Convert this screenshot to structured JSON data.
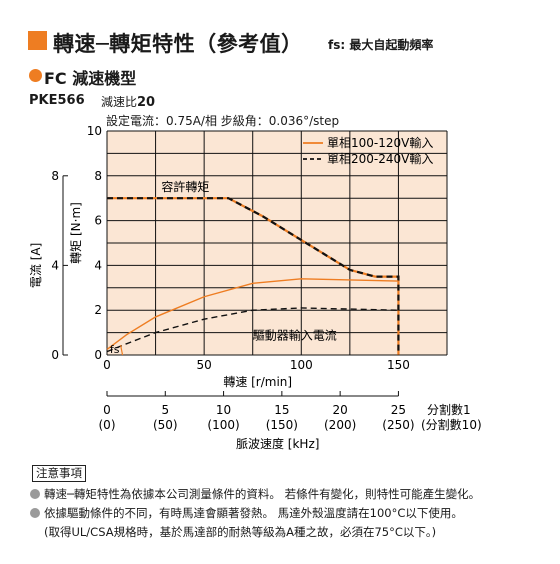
{
  "header": {
    "title": "轉速─轉矩特性（參考值）",
    "subtitle": "fs: 最大自起動頻率"
  },
  "section": {
    "title": "FC 減速機型"
  },
  "model": {
    "name": "PKE566",
    "ratio_label": "減速比",
    "ratio_value": "20"
  },
  "conditions": "設定電流：0.75A/相 步級角：0.036°/step",
  "colors": {
    "accent": "#ee7d22",
    "plot_bg": "#fbe6d4",
    "grid": "#111111",
    "dashed": "#111111"
  },
  "chart_data": {
    "type": "line",
    "xlabel": "轉速 [r/min]",
    "ylabel": "轉矩 [N·m]",
    "xlim": [
      0,
      175
    ],
    "ylim": [
      0,
      10
    ],
    "x_ticks": [
      0,
      50,
      100,
      150
    ],
    "y_ticks": [
      0,
      2,
      4,
      6,
      8,
      10
    ],
    "grid": true,
    "legend_position": "top-right",
    "series": [
      {
        "name": "單相100-120V輸入",
        "style": "solid",
        "color": "#ee7d22",
        "kind": "torque",
        "x": [
          0,
          62.5,
          80,
          95,
          110,
          125,
          138,
          150,
          150
        ],
        "y": [
          7.0,
          7.0,
          6.2,
          5.4,
          4.6,
          3.8,
          3.5,
          3.5,
          0
        ]
      },
      {
        "name": "單相200-240V輸入",
        "style": "dashed",
        "color": "#111111",
        "kind": "torque",
        "x": [
          0,
          62.5,
          80,
          95,
          110,
          125,
          138,
          150,
          150
        ],
        "y": [
          7.0,
          7.0,
          6.2,
          5.4,
          4.6,
          3.8,
          3.5,
          3.5,
          0
        ]
      },
      {
        "name": "",
        "style": "solid",
        "color": "#ee7d22",
        "kind": "current",
        "x": [
          0,
          10,
          25,
          50,
          75,
          100,
          125,
          150
        ],
        "y": [
          0.25,
          0.9,
          1.7,
          2.6,
          3.2,
          3.4,
          3.35,
          3.3
        ]
      },
      {
        "name": "",
        "style": "dashed",
        "color": "#111111",
        "kind": "current",
        "x": [
          0,
          10,
          25,
          50,
          75,
          100,
          125,
          150
        ],
        "y": [
          0.15,
          0.5,
          1.0,
          1.6,
          2.0,
          2.1,
          2.05,
          2.0
        ]
      }
    ],
    "annotations": {
      "permissible": "容許轉矩",
      "current": "驅動器輸入電流",
      "fs": "fs"
    },
    "current_axis": {
      "label": "電流 [A]",
      "ticks": [
        0,
        4,
        8
      ],
      "ylim": [
        0,
        8
      ]
    },
    "pulse_axis": {
      "label": "脈波速度 [kHz]",
      "ticks_div1": [
        "0",
        "5",
        "10",
        "15",
        "20",
        "25"
      ],
      "ticks_div10": [
        "(0)",
        "(50)",
        "(100)",
        "(150)",
        "(200)",
        "(250)"
      ],
      "div1_label": "分割數1",
      "div10_label": "(分割數10)"
    }
  },
  "notes": {
    "heading": "注意事項",
    "line1": "轉速─轉矩特性為依據本公司測量條件的資料。 若條件有變化，則特性可能產生變化。",
    "line2": "依據驅動條件的不同，有時馬達會顯著發熱。 馬達外殼溫度請在100°C以下使用。",
    "line3": "(取得UL/CSA規格時，基於馬達部的耐熱等級為A種之故，必須在75°C以下。)"
  }
}
